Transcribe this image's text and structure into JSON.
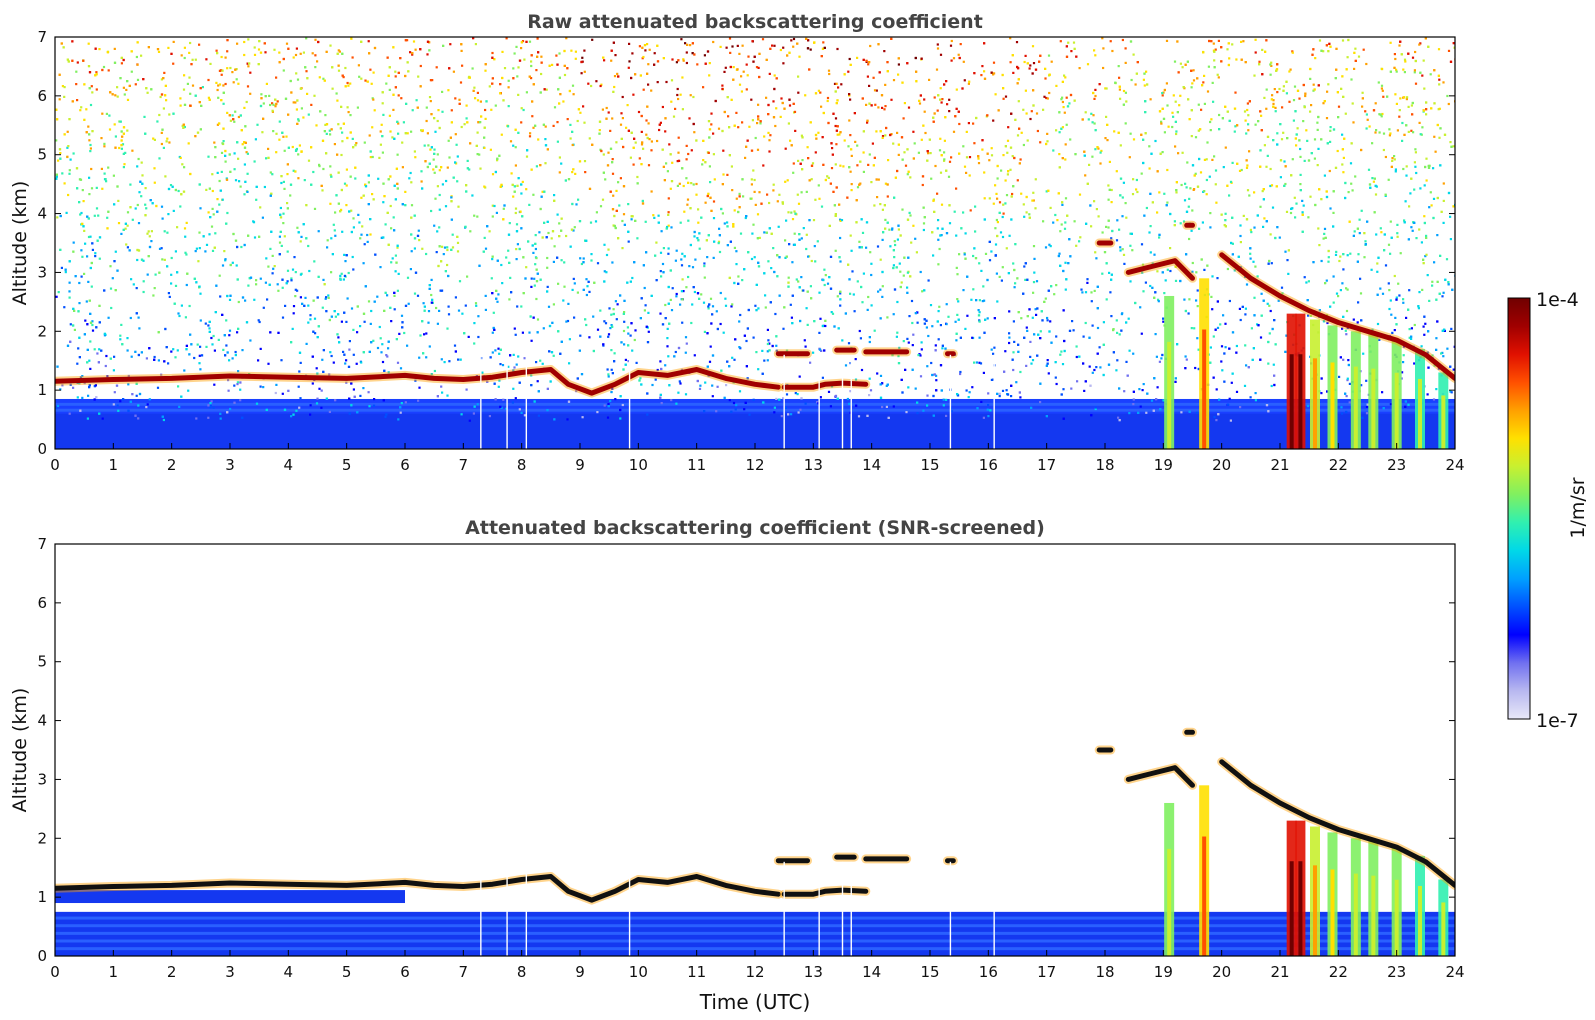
{
  "figure": {
    "colorbar": {
      "label": "1/m/sr",
      "max_label": "1e-4",
      "min_label": "1e-7",
      "scale": "log",
      "colormap": [
        "#e8e8f8",
        "#b8b8f0",
        "#7070f0",
        "#0000ff",
        "#0050ff",
        "#00a0ff",
        "#00d8e8",
        "#30f0b0",
        "#80f060",
        "#c8f030",
        "#ffe000",
        "#ffa000",
        "#ff5000",
        "#e01000",
        "#a00000",
        "#700000"
      ]
    },
    "x_tick_labels": [
      "0",
      "1",
      "2",
      "3",
      "4",
      "5",
      "6",
      "7",
      "8",
      "9",
      "10",
      "11",
      "12",
      "13",
      "14",
      "15",
      "16",
      "17",
      "18",
      "19",
      "20",
      "21",
      "22",
      "23",
      "24"
    ],
    "y_tick_labels": [
      "0",
      "1",
      "2",
      "3",
      "4",
      "5",
      "6",
      "7"
    ]
  },
  "chart_data": [
    {
      "type": "heatmap",
      "title": "Raw attenuated backscattering coefficient",
      "xlabel": "",
      "ylabel": "Altitude (km)",
      "xlim": [
        0,
        24
      ],
      "ylim": [
        0,
        7
      ],
      "z_range": [
        1e-07,
        0.0001
      ],
      "z_scale": "log",
      "background": "noisy",
      "cloud_layers": [
        {
          "x": [
            0,
            1,
            2,
            3,
            4,
            5,
            6,
            6.5,
            7,
            7.5,
            8,
            8.5,
            8.8,
            9.2,
            9.6,
            10,
            10.5,
            11,
            11.5,
            12,
            12.4
          ],
          "y": [
            1.15,
            1.18,
            1.2,
            1.24,
            1.22,
            1.2,
            1.25,
            1.2,
            1.18,
            1.22,
            1.3,
            1.35,
            1.1,
            0.95,
            1.1,
            1.3,
            1.25,
            1.35,
            1.2,
            1.1,
            1.05
          ]
        },
        {
          "x": [
            12.5,
            13,
            13.2,
            13.5,
            13.9
          ],
          "y": [
            1.05,
            1.05,
            1.1,
            1.12,
            1.1
          ]
        },
        {
          "x": [
            12.4,
            12.9
          ],
          "y": [
            1.62,
            1.62
          ]
        },
        {
          "x": [
            13.4,
            13.7
          ],
          "y": [
            1.68,
            1.68
          ]
        },
        {
          "x": [
            13.9,
            14.6
          ],
          "y": [
            1.65,
            1.65
          ]
        },
        {
          "x": [
            15.3,
            15.4
          ],
          "y": [
            1.62,
            1.62
          ]
        },
        {
          "x": [
            17.9,
            18.1
          ],
          "y": [
            3.5,
            3.5
          ]
        },
        {
          "x": [
            18.4,
            18.8,
            19.2,
            19.5
          ],
          "y": [
            3.0,
            3.1,
            3.2,
            2.9
          ]
        },
        {
          "x": [
            19.4,
            19.5
          ],
          "y": [
            3.8,
            3.8
          ]
        },
        {
          "x": [
            20.0,
            20.5,
            21.0,
            21.5,
            22.0,
            22.5,
            23.0,
            23.5,
            24.0
          ],
          "y": [
            3.3,
            2.9,
            2.6,
            2.35,
            2.15,
            2.0,
            1.85,
            1.6,
            1.2
          ]
        }
      ],
      "rain_streaks": [
        {
          "x": 19.1,
          "top": 2.6,
          "level": 0.5
        },
        {
          "x": 19.7,
          "top": 2.9,
          "level": 0.65
        },
        {
          "x": 21.2,
          "top": 2.3,
          "level": 0.85
        },
        {
          "x": 21.35,
          "top": 2.3,
          "level": 0.85
        },
        {
          "x": 21.6,
          "top": 2.2,
          "level": 0.6
        },
        {
          "x": 21.9,
          "top": 2.1,
          "level": 0.55
        },
        {
          "x": 22.3,
          "top": 2.0,
          "level": 0.5
        },
        {
          "x": 22.6,
          "top": 1.95,
          "level": 0.5
        },
        {
          "x": 23.0,
          "top": 1.85,
          "level": 0.5
        },
        {
          "x": 23.4,
          "top": 1.7,
          "level": 0.45
        },
        {
          "x": 23.8,
          "top": 1.3,
          "level": 0.45
        }
      ],
      "missing_profiles": [
        7.3,
        7.75,
        8.08,
        9.85,
        12.5,
        13.1,
        13.5,
        13.65,
        15.35,
        16.1
      ]
    },
    {
      "type": "heatmap",
      "title": "Attenuated backscattering coefficient (SNR-screened)",
      "xlabel": "Time (UTC)",
      "ylabel": "Altitude (km)",
      "xlim": [
        0,
        24
      ],
      "ylim": [
        0,
        7
      ],
      "z_range": [
        1e-07,
        0.0001
      ],
      "z_scale": "log",
      "background": "screened",
      "screened_near_surface_top": 0.75,
      "cloud_layers": [
        {
          "x": [
            0,
            1,
            2,
            3,
            4,
            5,
            6,
            6.5,
            7,
            7.5,
            8,
            8.5,
            8.8,
            9.2,
            9.6,
            10,
            10.5,
            11,
            11.5,
            12,
            12.4
          ],
          "y": [
            1.15,
            1.18,
            1.2,
            1.24,
            1.22,
            1.2,
            1.25,
            1.2,
            1.18,
            1.22,
            1.3,
            1.35,
            1.1,
            0.95,
            1.1,
            1.3,
            1.25,
            1.35,
            1.2,
            1.1,
            1.05
          ]
        },
        {
          "x": [
            12.5,
            13,
            13.2,
            13.5,
            13.9
          ],
          "y": [
            1.05,
            1.05,
            1.1,
            1.12,
            1.1
          ]
        },
        {
          "x": [
            12.4,
            12.9
          ],
          "y": [
            1.62,
            1.62
          ]
        },
        {
          "x": [
            13.4,
            13.7
          ],
          "y": [
            1.68,
            1.68
          ]
        },
        {
          "x": [
            13.9,
            14.6
          ],
          "y": [
            1.65,
            1.65
          ]
        },
        {
          "x": [
            15.3,
            15.4
          ],
          "y": [
            1.62,
            1.62
          ]
        },
        {
          "x": [
            17.9,
            18.1
          ],
          "y": [
            3.5,
            3.5
          ]
        },
        {
          "x": [
            18.4,
            18.8,
            19.2,
            19.5
          ],
          "y": [
            3.0,
            3.1,
            3.2,
            2.9
          ]
        },
        {
          "x": [
            19.4,
            19.5
          ],
          "y": [
            3.8,
            3.8
          ]
        },
        {
          "x": [
            20.0,
            20.5,
            21.0,
            21.5,
            22.0,
            22.5,
            23.0,
            23.5,
            24.0
          ],
          "y": [
            3.3,
            2.9,
            2.6,
            2.35,
            2.15,
            2.0,
            1.85,
            1.6,
            1.2
          ]
        }
      ],
      "rain_streaks": [
        {
          "x": 19.1,
          "top": 2.6,
          "level": 0.5
        },
        {
          "x": 19.7,
          "top": 2.9,
          "level": 0.65
        },
        {
          "x": 21.2,
          "top": 2.3,
          "level": 0.85
        },
        {
          "x": 21.35,
          "top": 2.3,
          "level": 0.85
        },
        {
          "x": 21.6,
          "top": 2.2,
          "level": 0.6
        },
        {
          "x": 21.9,
          "top": 2.1,
          "level": 0.55
        },
        {
          "x": 22.3,
          "top": 2.0,
          "level": 0.5
        },
        {
          "x": 22.6,
          "top": 1.95,
          "level": 0.5
        },
        {
          "x": 23.0,
          "top": 1.85,
          "level": 0.5
        },
        {
          "x": 23.4,
          "top": 1.7,
          "level": 0.45
        },
        {
          "x": 23.8,
          "top": 1.3,
          "level": 0.45
        }
      ],
      "missing_profiles": [
        7.3,
        7.75,
        8.08,
        9.85,
        12.5,
        13.1,
        13.5,
        13.65,
        15.35,
        16.1
      ]
    }
  ]
}
